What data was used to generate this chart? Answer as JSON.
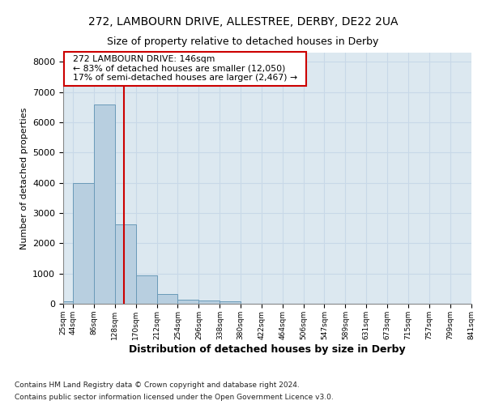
{
  "title1": "272, LAMBOURN DRIVE, ALLESTREE, DERBY, DE22 2UA",
  "title2": "Size of property relative to detached houses in Derby",
  "xlabel": "Distribution of detached houses by size in Derby",
  "ylabel": "Number of detached properties",
  "footer1": "Contains HM Land Registry data © Crown copyright and database right 2024.",
  "footer2": "Contains public sector information licensed under the Open Government Licence v3.0.",
  "annotation_title": "272 LAMBOURN DRIVE: 146sqm",
  "annotation_line1": "← 83% of detached houses are smaller (12,050)",
  "annotation_line2": "17% of semi-detached houses are larger (2,467) →",
  "property_size": 146,
  "bar_edges": [
    25,
    44,
    86,
    128,
    170,
    212,
    254,
    296,
    338,
    380,
    422,
    464,
    506,
    547,
    589,
    631,
    673,
    715,
    757,
    799,
    841
  ],
  "bar_heights": [
    75,
    3980,
    6580,
    2620,
    950,
    310,
    130,
    105,
    80,
    0,
    0,
    0,
    0,
    0,
    0,
    0,
    0,
    0,
    0,
    0
  ],
  "tick_labels": [
    "25sqm",
    "44sqm",
    "86sqm",
    "128sqm",
    "170sqm",
    "212sqm",
    "254sqm",
    "296sqm",
    "338sqm",
    "380sqm",
    "422sqm",
    "464sqm",
    "506sqm",
    "547sqm",
    "589sqm",
    "631sqm",
    "673sqm",
    "715sqm",
    "757sqm",
    "799sqm",
    "841sqm"
  ],
  "bar_color": "#b8cfe0",
  "bar_edge_color": "#6a9ab8",
  "vline_color": "#cc0000",
  "bg_color": "#dce8f0",
  "annotation_box_color": "#ffffff",
  "annotation_border_color": "#cc0000",
  "ylim": [
    0,
    8300
  ],
  "yticks": [
    0,
    1000,
    2000,
    3000,
    4000,
    5000,
    6000,
    7000,
    8000
  ],
  "grid_color": "#c8d8e8",
  "title1_fontsize": 10,
  "title2_fontsize": 9
}
